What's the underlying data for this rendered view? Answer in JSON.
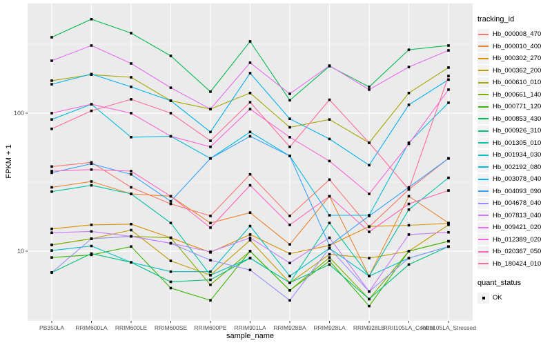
{
  "figure": {
    "background": "#ffffff",
    "panel_background": "#ebebeb",
    "grid_color": "#ffffff",
    "tick_text_color": "#4d4d4d",
    "point_color": "#000000"
  },
  "axes": {
    "x_title": "sample_name",
    "y_title": "FPKM + 1",
    "y_tick_labels": [
      "100",
      "10"
    ]
  },
  "legend": {
    "tracking_title": "tracking_id",
    "quant_title": "quant_status",
    "quant_value": "OK",
    "key_background": "#f2f2f2"
  },
  "chart_data": {
    "type": "line",
    "title": "",
    "xlabel": "sample_name",
    "ylabel": "FPKM + 1",
    "y_scale": "log10",
    "ylim": [
      3.1,
      620
    ],
    "y_major_ticks": [
      10,
      100
    ],
    "y_minor_ticks": [
      3.162,
      31.62,
      316.2
    ],
    "grid": true,
    "legend_position": "right",
    "point_shape": "filled-black-square",
    "quant_status_legend": [
      "OK"
    ],
    "categories": [
      "PB350LA",
      "RRIM600LA",
      "RRIM600LE",
      "RRIM600SE",
      "RRIM600PE",
      "RRIM901LA",
      "RRIM928BA",
      "RRIM928LA",
      "RRIM928LB",
      "RRII105LA_Control",
      "RRII105LA_Stressed"
    ],
    "series": [
      {
        "name": "Hb_000008_470",
        "color": "#F8766D",
        "values": [
          41,
          44,
          29,
          22,
          18,
          36,
          18,
          33,
          15,
          28,
          47
        ]
      },
      {
        "name": "Hb_000010_400",
        "color": "#EA8331",
        "values": [
          29,
          32,
          26,
          25,
          16,
          19,
          11.2,
          25,
          6.6,
          25,
          16
        ]
      },
      {
        "name": "Hb_000302_270",
        "color": "#D89000",
        "values": [
          14.5,
          15.5,
          15.7,
          12.5,
          9.8,
          13.2,
          9.6,
          11,
          15.1,
          15.4,
          15.9
        ]
      },
      {
        "name": "Hb_000362_200",
        "color": "#C09B00",
        "values": [
          11.1,
          12.3,
          14.2,
          8.5,
          6.7,
          12,
          5.9,
          9.5,
          8.9,
          10,
          15.5
        ]
      },
      {
        "name": "Hb_000610_010",
        "color": "#A3A500",
        "values": [
          172,
          190,
          182,
          123,
          107,
          140,
          79,
          90,
          61,
          140,
          214
        ]
      },
      {
        "name": "Hb_000661_140",
        "color": "#7CAE00",
        "values": [
          11.1,
          12.3,
          12.8,
          12.5,
          5.7,
          10,
          5.2,
          9,
          4.5,
          10,
          11.8
        ]
      },
      {
        "name": "Hb_000771_120",
        "color": "#39B600",
        "values": [
          9,
          9.4,
          10.8,
          5.4,
          4.4,
          10,
          5.2,
          8.5,
          4,
          10,
          11.8
        ]
      },
      {
        "name": "Hb_000853_430",
        "color": "#00BB4E",
        "values": [
          355,
          480,
          380,
          260,
          143,
          331,
          124,
          219,
          155,
          288,
          309
        ]
      },
      {
        "name": "Hb_000926_310",
        "color": "#00BF7D",
        "values": [
          7,
          9.6,
          8.3,
          6,
          6.2,
          8.9,
          5.9,
          8,
          4.5,
          8,
          10.8
        ]
      },
      {
        "name": "Hb_001305_010",
        "color": "#00C1A3",
        "values": [
          27,
          30,
          26,
          16,
          6.7,
          8.9,
          5.9,
          16,
          6.6,
          20,
          34
        ]
      },
      {
        "name": "Hb_001934_030",
        "color": "#00BFC4",
        "values": [
          10.1,
          10.9,
          8.3,
          7.1,
          7.1,
          15.2,
          6.6,
          10.5,
          6.6,
          8.9,
          10.8
        ]
      },
      {
        "name": "Hb_002192_080",
        "color": "#00BAE0",
        "values": [
          90,
          116,
          67,
          68,
          47,
          73,
          49,
          18.2,
          18.2,
          61,
          119
        ]
      },
      {
        "name": "Hb_003078_040",
        "color": "#00B0F6",
        "values": [
          162,
          192,
          155,
          123,
          73,
          195,
          91,
          65,
          42,
          115,
          175
        ]
      },
      {
        "name": "Hb_004093_090",
        "color": "#35A2FF",
        "values": [
          37,
          43,
          36,
          23,
          47,
          68,
          49,
          11,
          18,
          29,
          47
        ]
      },
      {
        "name": "Hb_004678_040",
        "color": "#9590FF",
        "values": [
          7,
          12.3,
          12.8,
          11.4,
          8.6,
          7.3,
          4.4,
          10.5,
          5.1,
          8.9,
          10.8
        ]
      },
      {
        "name": "Hb_007813_040",
        "color": "#C77CFF",
        "values": [
          13.6,
          13.9,
          12.8,
          11.4,
          9.9,
          12.5,
          8.2,
          12.5,
          5.1,
          13.2,
          13.7
        ]
      },
      {
        "name": "Hb_009421_020",
        "color": "#E76BF3",
        "values": [
          240,
          309,
          229,
          153,
          107,
          232,
          138,
          221,
          148,
          216,
          285
        ]
      },
      {
        "name": "Hb_012389_020",
        "color": "#FA62DB",
        "values": [
          100,
          116,
          100,
          68,
          57,
          107,
          67,
          45,
          26,
          60,
          148
        ]
      },
      {
        "name": "Hb_020367_050",
        "color": "#FF62BC",
        "values": [
          38,
          39,
          38,
          25,
          14.8,
          30,
          15.5,
          25,
          13.8,
          22,
          27.5
        ]
      },
      {
        "name": "Hb_180424_010",
        "color": "#FF6A98",
        "values": [
          77,
          104,
          126,
          100,
          63,
          120,
          57,
          125,
          61,
          28,
          186
        ]
      }
    ]
  }
}
